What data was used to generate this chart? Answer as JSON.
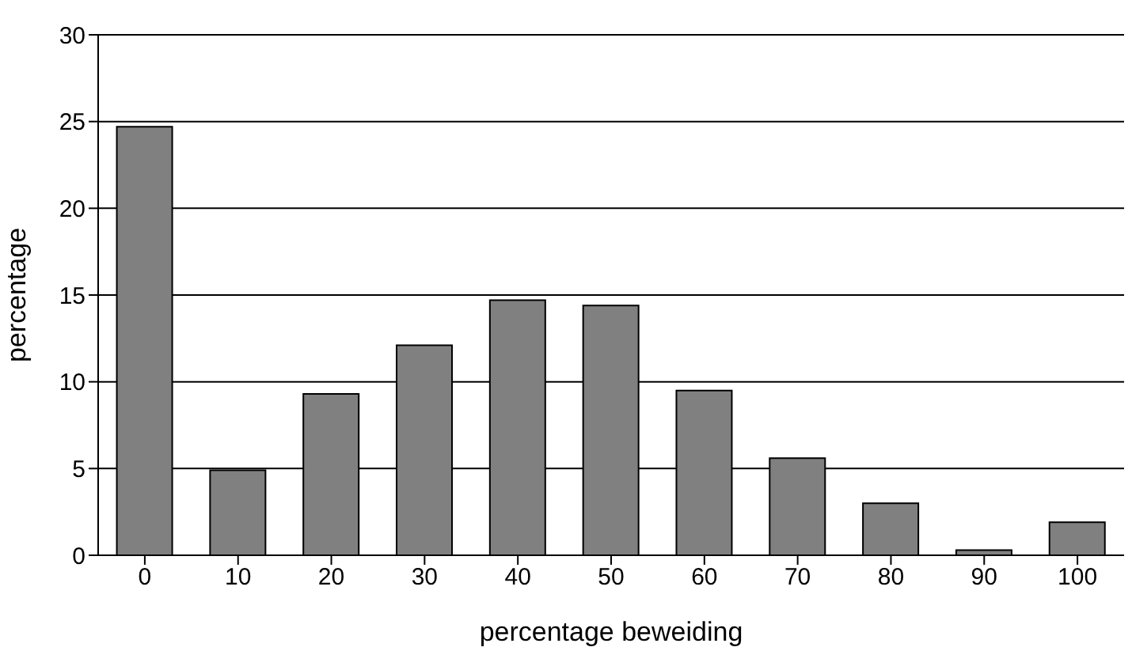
{
  "chart_data": {
    "type": "bar",
    "xlabel": "percentage beweiding",
    "ylabel": "percentage",
    "categories": [
      "0",
      "10",
      "20",
      "30",
      "40",
      "50",
      "60",
      "70",
      "80",
      "90",
      "100"
    ],
    "values": [
      24.7,
      4.9,
      9.3,
      12.1,
      14.7,
      14.4,
      9.5,
      5.6,
      3.0,
      0.3,
      1.9
    ],
    "color": "#808080",
    "ylim": [
      0,
      30
    ],
    "yticks": [
      0,
      5,
      10,
      15,
      20,
      25,
      30
    ],
    "grid": "y"
  }
}
